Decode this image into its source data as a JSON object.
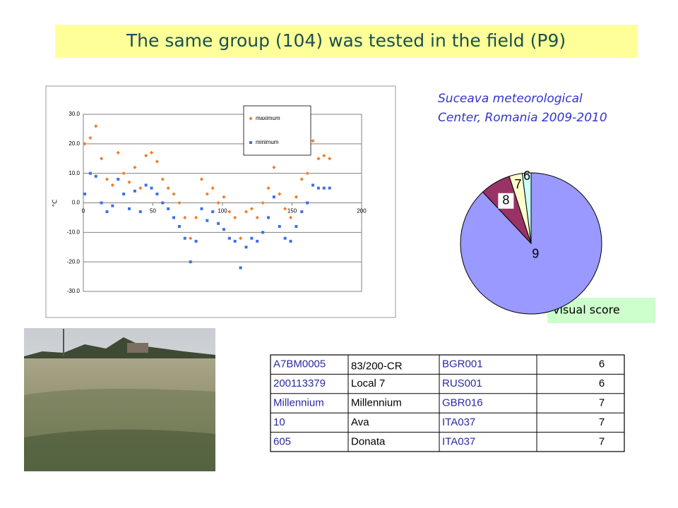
{
  "title": "The same group (104) was tested in the field (P9)",
  "caption": [
    "Suceava meteorological",
    "Center, Romania  2009-2010"
  ],
  "chart_data": [
    {
      "type": "scatter",
      "ylabel": "°C",
      "x": [
        1,
        5,
        9,
        13,
        17,
        21,
        25,
        29,
        33,
        37,
        41,
        45,
        49,
        53,
        57,
        61,
        65,
        69,
        73,
        77,
        81,
        85,
        89,
        93,
        97,
        101,
        105,
        109,
        113,
        117,
        121,
        125,
        129,
        133,
        137,
        141,
        145,
        149,
        153,
        157,
        161,
        165,
        169,
        173,
        177
      ],
      "series": [
        {
          "name": "maximum",
          "color": "#f07d2a",
          "marker": "diamond",
          "values": [
            20,
            22,
            26,
            15,
            8,
            6,
            17,
            10,
            7,
            12,
            5,
            16,
            17,
            14,
            8,
            5,
            3,
            0,
            -5,
            -12,
            -5,
            8,
            3,
            5,
            0,
            2,
            -3,
            -5,
            -12,
            -3,
            -2,
            -5,
            0,
            5,
            12,
            3,
            -2,
            -5,
            2,
            8,
            10,
            21,
            15,
            16,
            15
          ]
        },
        {
          "name": "minimum",
          "color": "#3f6fe8",
          "marker": "square",
          "values": [
            3,
            10,
            9,
            0,
            -3,
            -1,
            8,
            3,
            -2,
            4,
            -3,
            6,
            5,
            3,
            0,
            -2,
            -5,
            -8,
            -12,
            -20,
            -13,
            -2,
            -6,
            -3,
            -7,
            -9,
            -12,
            -13,
            -22,
            -15,
            -12,
            -13,
            -10,
            -5,
            2,
            -8,
            -12,
            -13,
            -8,
            -3,
            0,
            6,
            5,
            5,
            5
          ]
        }
      ],
      "xlim": [
        0,
        200
      ],
      "xticks": [
        0,
        50,
        100,
        150,
        200
      ],
      "ylim": [
        -30,
        30
      ],
      "yticks": [
        {
          "value": -30,
          "label": "-30.0"
        },
        {
          "value": -20,
          "label": "-20.0"
        },
        {
          "value": -10,
          "label": "-10.0"
        },
        {
          "value": 0,
          "label": "0.0"
        },
        {
          "value": 10,
          "label": "10.0"
        },
        {
          "value": 20,
          "label": "20.0"
        },
        {
          "value": 30,
          "label": "30.0"
        }
      ],
      "grid": true,
      "legend": "top-right"
    },
    {
      "type": "pie",
      "categories": [
        "9",
        "8",
        "7",
        "6"
      ],
      "values": [
        88,
        7,
        3,
        2
      ],
      "colors": [
        "#9999ff",
        "#993366",
        "#ffffcc",
        "#ccffff"
      ],
      "annotation": "visual score"
    }
  ],
  "table": {
    "rows": [
      [
        "A7BM0005",
        "83/200-CR",
        "BGR001",
        6
      ],
      [
        "200113379",
        "Local 7",
        "RUS001",
        6
      ],
      [
        "Millennium",
        "Millennium",
        "GBR016",
        7
      ],
      [
        "10",
        "Ava",
        "ITA037",
        7
      ],
      [
        "605",
        "Donata",
        "ITA037",
        7
      ]
    ]
  }
}
